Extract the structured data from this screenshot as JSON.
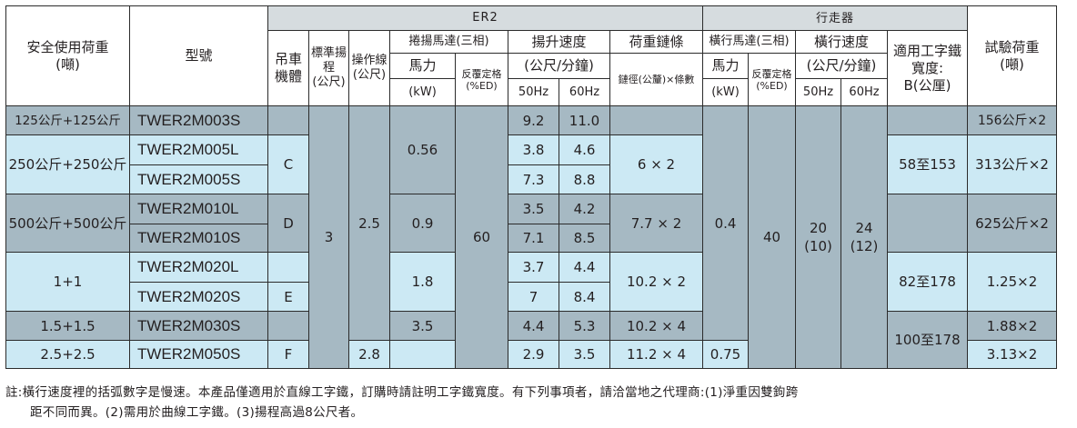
{
  "headers": {
    "safe_load": "安全使用荷重",
    "safe_load_unit": "(噸)",
    "model": "型號",
    "er2": "ER2",
    "hoist_body": "吊車機體",
    "std_lift": "標準揚程",
    "std_lift_unit": "(公尺)",
    "pendant": "操作線",
    "pendant_unit": "(公尺)",
    "hoist_motor": "捲揚馬達(三相)",
    "hp": "馬力",
    "kw": "(kW)",
    "duty": "反覆定格",
    "ed": "(%ED)",
    "lift_speed": "揚升速度",
    "lift_speed_unit": "(公尺/分鐘)",
    "hz50": "50Hz",
    "hz60": "60Hz",
    "chain": "荷重鏈條",
    "chain_dia": "鏈徑(公釐)×條數",
    "trolley": "行走器",
    "trav_motor": "橫行馬達(三相)",
    "trav_hp": "馬力",
    "trav_kw": "(kW)",
    "trav_duty": "反覆定格",
    "trav_ed": "(%ED)",
    "trav_speed": "橫行速度",
    "trav_speed_unit": "(公尺/分鐘)",
    "trav_hz50": "50Hz",
    "trav_hz60": "60Hz",
    "flange": "適用工字鐵寬度:",
    "flange_unit": "B(公厘)",
    "test_load": "試驗荷重",
    "test_load_unit": "(噸)"
  },
  "rows": [
    {
      "safe_load": "125公斤+125公斤",
      "model": "TWER2M003S",
      "body": "",
      "lift": "",
      "pendant": "",
      "hp": "0.56",
      "duty": "",
      "s50": "9.2",
      "s60": "11.0",
      "chain": "",
      "thp": "",
      "tduty": "",
      "t50": "",
      "t60": "",
      "flange": "",
      "test": "156公斤×2"
    },
    {
      "safe_load": "250公斤+250公斤",
      "model": "TWER2M005L",
      "body": "C",
      "s50": "3.8",
      "s60": "4.6",
      "chain": "6 × 2",
      "test": "313公斤×2"
    },
    {
      "model": "TWER2M005S",
      "s50": "7.3",
      "s60": "8.8",
      "flange": "58至153"
    },
    {
      "safe_load": "500公斤+500公斤",
      "model": "TWER2M010L",
      "body": "D",
      "hp": "0.9",
      "s50": "3.5",
      "s60": "4.2",
      "chain": "7.7 × 2",
      "thp": "0.4",
      "test": "625公斤×2"
    },
    {
      "model": "TWER2M010S",
      "lift": "3",
      "pendant": "2.5",
      "duty": "60",
      "s50": "7.1",
      "s60": "8.5",
      "tduty": "40",
      "t50": "20",
      "t50b": "(10)",
      "t60": "24",
      "t60b": "(12)"
    },
    {
      "safe_load": "1+1",
      "model": "TWER2M020L",
      "hp": "1.8",
      "s50": "3.7",
      "s60": "4.4",
      "chain": "10.2 × 2",
      "flange": "82至178",
      "test": "1.25×2"
    },
    {
      "model": "TWER2M020S",
      "body": "E",
      "s50": "7",
      "s60": "8.4"
    },
    {
      "safe_load": "1.5+1.5",
      "model": "TWER2M030S",
      "hp": "3.5",
      "s50": "4.4",
      "s60": "5.3",
      "chain": "10.2 × 4",
      "flange": "100至178",
      "test": "1.88×2"
    },
    {
      "safe_load": "2.5+2.5",
      "model": "TWER2M050S",
      "body": "F",
      "pendant": "2.8",
      "s50": "2.9",
      "s60": "3.5",
      "chain": "11.2 × 4",
      "thp": "0.75",
      "test": "3.13×2"
    }
  ],
  "note_line1": "註:橫行速度裡的括弧數字是慢速。本產品僅適用於直線工字鐵，訂購時請註明工字鐵寬度。有下列事項者，請洽當地之代理商:(1)淨重因雙鉤跨",
  "note_line2": "距不同而異。(2)需用於曲線工字鐵。(3)揚程高過8公尺者。",
  "colors": {
    "dark_row": "#a6b9c3",
    "light_row": "#cce9f4",
    "group_header": "#d6dcdf"
  }
}
